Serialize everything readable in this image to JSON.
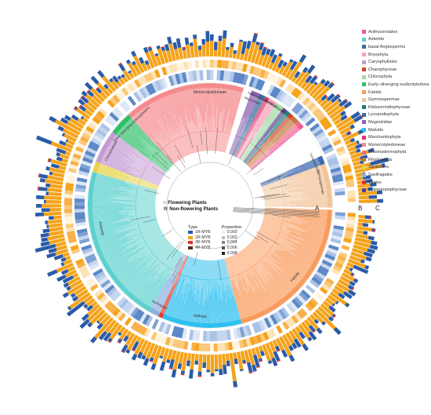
{
  "legend": {
    "clades": [
      {
        "label": "Anthocerotales",
        "color": "#f0559a"
      },
      {
        "label": "Asterids",
        "color": "#5cd1cf"
      },
      {
        "label": "basal Angiosperms",
        "color": "#3c6e9c"
      },
      {
        "label": "Bryophyta",
        "color": "#f59fb8"
      },
      {
        "label": "Caryophyllales",
        "color": "#c49ad3"
      },
      {
        "label": "Charophyceae",
        "color": "#d3442a"
      },
      {
        "label": "Chlorophyta",
        "color": "#9fd8a0"
      },
      {
        "label": "Early−diverging eudicotyledons",
        "color": "#2fbf6a"
      },
      {
        "label": "Fabids",
        "color": "#f99b5c"
      },
      {
        "label": "Gymnospermae",
        "color": "#f2c49a"
      },
      {
        "label": "Klebsormidiophyceae",
        "color": "#1c7f73"
      },
      {
        "label": "Lycopodiophyta",
        "color": "#3d6ab0"
      },
      {
        "label": "Magnoliidae",
        "color": "#8b5fb3"
      },
      {
        "label": "Malvids",
        "color": "#2ec0ef"
      },
      {
        "label": "Marchantiophyta",
        "color": "#e0336a"
      },
      {
        "label": "Monocotyledoneae",
        "color": "#f58a8c"
      },
      {
        "label": "Prasinodermophyta",
        "color": "#ed6d7a"
      },
      {
        "label": "Rhodophyta",
        "color": "#c07a3c"
      },
      {
        "label": "Santalales",
        "color": "#e8d34a"
      },
      {
        "label": "Saxifragales",
        "color": "#8db3e0"
      },
      {
        "label": "Vitales",
        "color": "#e03a2e"
      },
      {
        "label": "Zygnematophyceae",
        "color": "#5a3c94"
      }
    ],
    "type_title": "Type",
    "types": [
      {
        "label": "1R-MYB",
        "color": "#2a5ba8"
      },
      {
        "label": "2R-MYB",
        "color": "#f5a31a"
      },
      {
        "label": "3R-MYB",
        "color": "#d9332b"
      },
      {
        "label": "4R-MYB",
        "color": "#5b2a1c"
      }
    ],
    "proportion_title": "Proportion",
    "proportions": [
      {
        "label": "0.000",
        "color": "#eeeeee"
      },
      {
        "label": "0.002",
        "color": "#bdbdbd"
      },
      {
        "label": "0.004",
        "color": "#8a8a8a"
      },
      {
        "label": "0.006",
        "color": "#555555"
      },
      {
        "label": "0.008",
        "color": "#222222"
      }
    ],
    "flowering": "Flowering Plants",
    "non_flowering": "Non-flowering Plants"
  },
  "ring_labels": {
    "a": "A",
    "b": "B",
    "c": "C"
  },
  "clade_labels": {
    "monocot": "Monocotyledoneae",
    "early": "Early−diverging eudicotyledons",
    "caryo": "Caryophyllales",
    "santalales": "Santalales",
    "asterids": "Asterids",
    "saxifragales": "Saxifragales",
    "malvids": "Malvids",
    "fabids": "Fabids",
    "gymno": "Gymnospermae",
    "lyco": "Lycopodiophyta",
    "magnoliidae": "Magnoliidae",
    "basal": "basal Angiosperms",
    "bryo": "Bryophyta",
    "chloro": "Chlorophyta"
  }
}
